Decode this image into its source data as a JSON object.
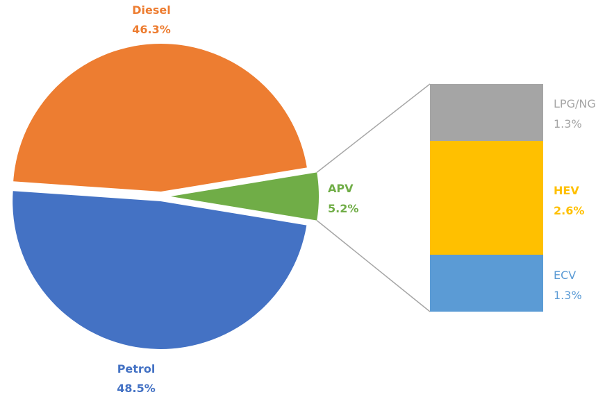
{
  "chart_data": {
    "type": "bar-of-pie",
    "pie": {
      "slices": [
        {
          "name": "Diesel",
          "value": 46.3,
          "label": "46.3%",
          "color": "#ED7D31"
        },
        {
          "name": "APV",
          "value": 5.2,
          "label": "5.2%",
          "color": "#70AD47"
        },
        {
          "name": "Petrol",
          "value": 48.5,
          "label": "48.5%",
          "color": "#4472C4"
        }
      ]
    },
    "breakdown": {
      "of": "APV",
      "segments": [
        {
          "name": "LPG/NG",
          "value": 1.3,
          "label": "1.3%",
          "color": "#A5A5A5"
        },
        {
          "name": "HEV",
          "value": 2.6,
          "label": "2.6%",
          "color": "#FFC000"
        },
        {
          "name": "ECV",
          "value": 1.3,
          "label": "1.3%",
          "color": "#5B9BD5"
        }
      ]
    },
    "connector_color": "#A6A6A6"
  }
}
